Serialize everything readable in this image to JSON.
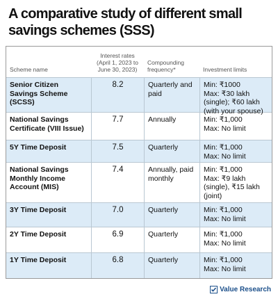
{
  "title": "A comparative study of different small savings schemes (SSS)",
  "table": {
    "headers": [
      "Scheme name",
      "Interest rates (April 1, 2023 to June 30, 2023)",
      "Compounding frequency*",
      "Investment limits"
    ],
    "rows": [
      [
        "Senior Citizen Savings Scheme (SCSS)",
        "8.2",
        "Quarterly and paid",
        [
          "Min: ₹1000",
          "Max: ₹30 lakh (single); ₹60 lakh (with your spouse)"
        ]
      ],
      [
        "National Savings Certificate (VIII Issue)",
        "7.7",
        "Annually",
        [
          "Min: ₹1,000",
          "Max: No limit"
        ]
      ],
      [
        "5Y Time Deposit",
        "7.5",
        "Quarterly",
        [
          "Min: ₹1,000",
          "Max: No limit"
        ]
      ],
      [
        "National Savings Monthly Income Account (MIS)",
        "7.4",
        "Annually, paid monthly",
        [
          "Min: ₹1,000",
          "Max: ₹9 lakh (single), ₹15 lakh (joint)"
        ]
      ],
      [
        "3Y Time Deposit",
        "7.0",
        "Quarterly",
        [
          "Min: ₹1,000",
          "Max: No limit"
        ]
      ],
      [
        "2Y Time Deposit",
        "6.9",
        "Quarterly",
        [
          "Min: ₹1,000",
          "Max: No limit"
        ]
      ],
      [
        "1Y Time Deposit",
        "6.8",
        "Quarterly",
        [
          "Min: ₹1,000",
          "Max: No limit"
        ]
      ]
    ]
  },
  "footer": {
    "brand": "Value Research"
  }
}
